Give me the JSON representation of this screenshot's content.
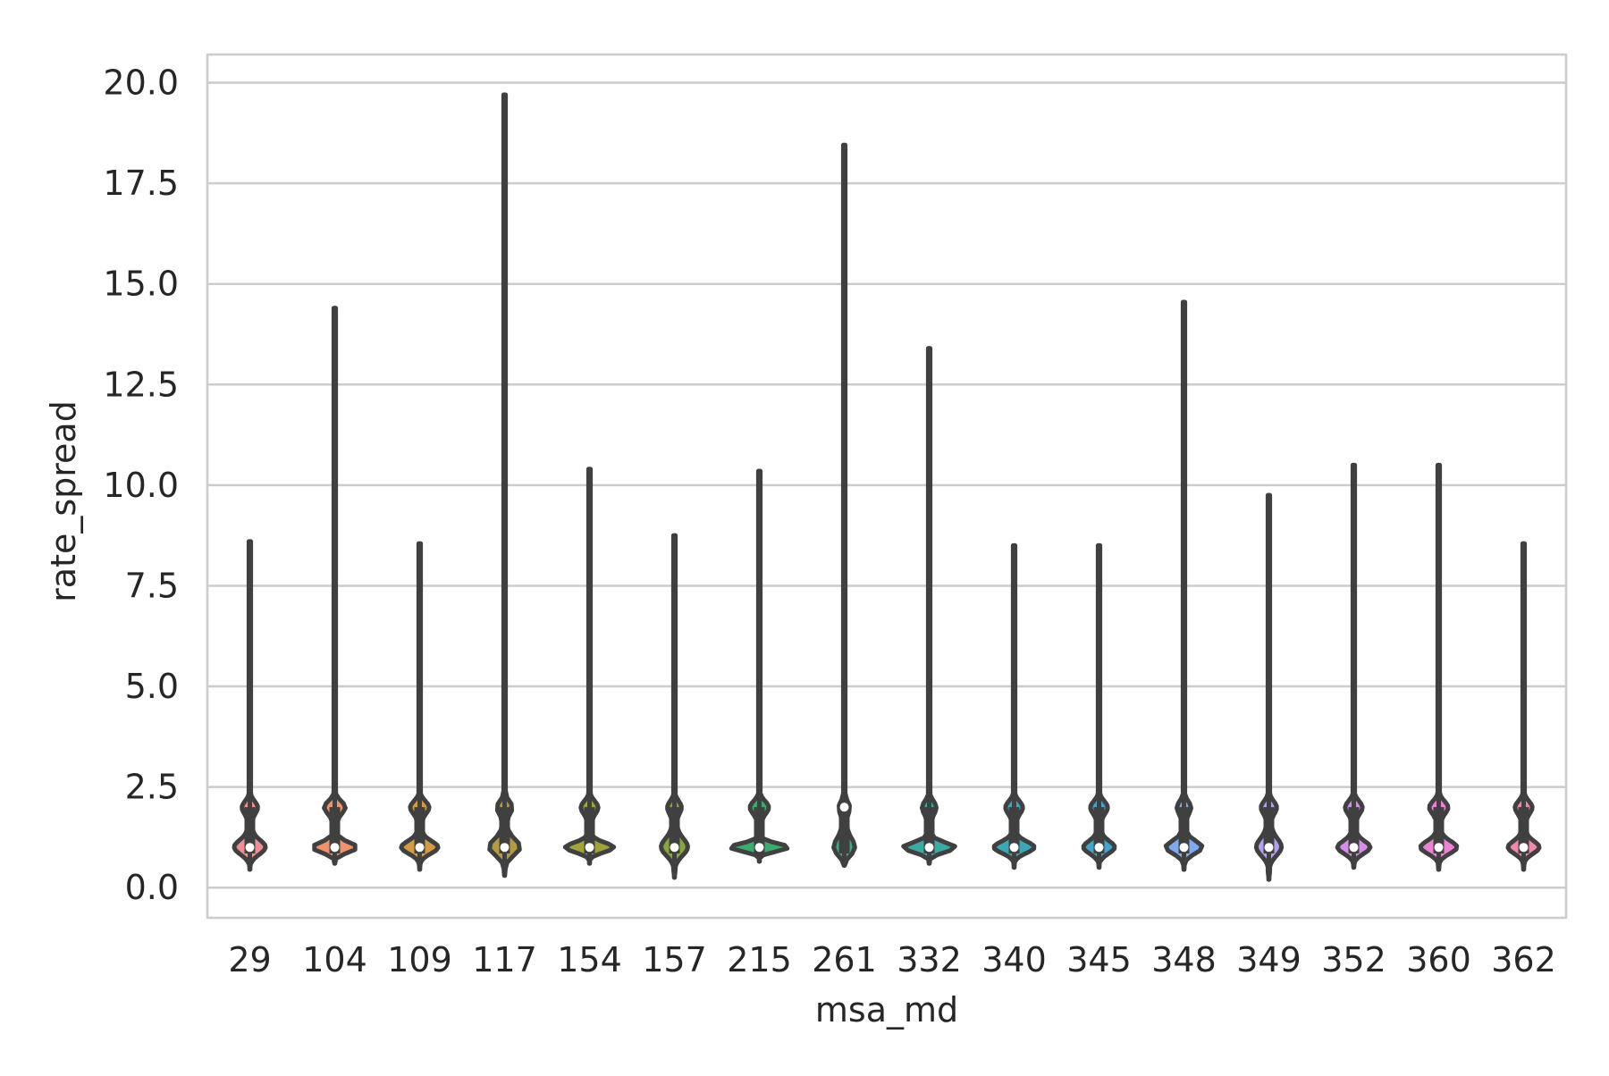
{
  "chart_data": {
    "type": "violin",
    "xlabel": "msa_md",
    "ylabel": "rate_spread",
    "ylim": [
      -0.75,
      20.7
    ],
    "yticks": [
      "0.0",
      "2.5",
      "5.0",
      "7.5",
      "10.0",
      "12.5",
      "15.0",
      "17.5",
      "20.0"
    ],
    "grid": "horizontal",
    "categories": [
      "29",
      "104",
      "109",
      "117",
      "154",
      "157",
      "215",
      "261",
      "332",
      "340",
      "345",
      "348",
      "349",
      "352",
      "360",
      "362"
    ],
    "colors": [
      "#f08f8f",
      "#f0936a",
      "#d39b44",
      "#b59c3b",
      "#a0a23a",
      "#87a73a",
      "#3bab6e",
      "#3aaa8d",
      "#3da9a5",
      "#3ba8b8",
      "#43a4cd",
      "#7faaf0",
      "#b5a0ee",
      "#d58ee8",
      "#ec82d6",
      "#ef87ae"
    ],
    "violins": [
      {
        "min": 0.45,
        "max": 8.6,
        "median": 1.0,
        "width": 0.38,
        "bulge2": 0.18,
        "spread": 0.25
      },
      {
        "min": 0.6,
        "max": 14.4,
        "median": 1.0,
        "width": 0.55,
        "bulge2": 0.25,
        "spread": 0.18
      },
      {
        "min": 0.45,
        "max": 8.55,
        "median": 1.0,
        "width": 0.45,
        "bulge2": 0.22,
        "spread": 0.22
      },
      {
        "min": 0.3,
        "max": 19.7,
        "median": 1.0,
        "width": 0.38,
        "bulge2": 0.18,
        "spread": 0.28
      },
      {
        "min": 0.6,
        "max": 10.4,
        "median": 1.0,
        "width": 0.6,
        "bulge2": 0.2,
        "spread": 0.17
      },
      {
        "min": 0.25,
        "max": 8.75,
        "median": 1.0,
        "width": 0.32,
        "bulge2": 0.16,
        "spread": 0.3
      },
      {
        "min": 0.65,
        "max": 10.35,
        "median": 1.0,
        "width": 0.72,
        "bulge2": 0.22,
        "spread": 0.14
      },
      {
        "min": 0.55,
        "max": 18.45,
        "median": 2.0,
        "width": 0.25,
        "bulge2": 0.12,
        "spread": 0.3
      },
      {
        "min": 0.6,
        "max": 13.4,
        "median": 1.0,
        "width": 0.65,
        "bulge2": 0.16,
        "spread": 0.17
      },
      {
        "min": 0.5,
        "max": 8.5,
        "median": 1.0,
        "width": 0.5,
        "bulge2": 0.2,
        "spread": 0.2
      },
      {
        "min": 0.5,
        "max": 8.5,
        "median": 1.0,
        "width": 0.38,
        "bulge2": 0.2,
        "spread": 0.22
      },
      {
        "min": 0.45,
        "max": 14.55,
        "median": 1.0,
        "width": 0.45,
        "bulge2": 0.16,
        "spread": 0.22
      },
      {
        "min": 0.2,
        "max": 9.75,
        "median": 1.0,
        "width": 0.3,
        "bulge2": 0.18,
        "spread": 0.3
      },
      {
        "min": 0.5,
        "max": 10.5,
        "median": 1.0,
        "width": 0.4,
        "bulge2": 0.2,
        "spread": 0.22
      },
      {
        "min": 0.45,
        "max": 10.5,
        "median": 1.0,
        "width": 0.45,
        "bulge2": 0.22,
        "spread": 0.22
      },
      {
        "min": 0.45,
        "max": 8.55,
        "median": 1.0,
        "width": 0.38,
        "bulge2": 0.2,
        "spread": 0.22
      }
    ]
  }
}
